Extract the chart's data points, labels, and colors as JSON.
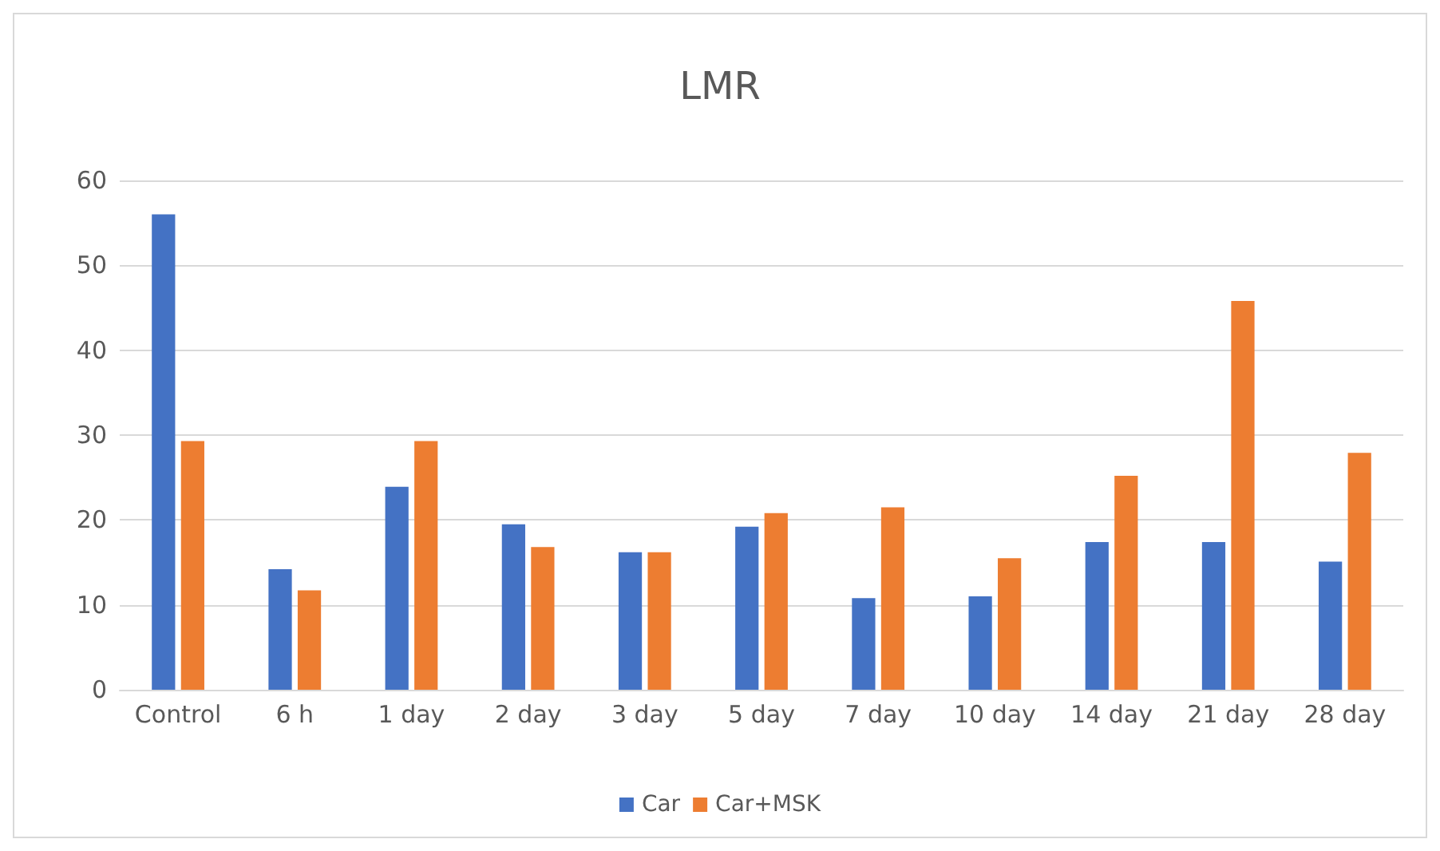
{
  "chart_data": {
    "type": "bar",
    "title": "LMR",
    "categories": [
      "Control",
      "6 h",
      "1 day",
      "2 day",
      "3 day",
      "5 day",
      "7 day",
      "10 day",
      "14 day",
      "21 day",
      "28 day"
    ],
    "series": [
      {
        "name": "Car",
        "color": "#4472c4",
        "values": [
          56,
          14.2,
          23.9,
          19.5,
          16.2,
          19.2,
          10.8,
          11,
          17.4,
          17.4,
          15.1
        ]
      },
      {
        "name": "Car+MSK",
        "color": "#ed7d31",
        "values": [
          29.3,
          11.7,
          29.3,
          16.8,
          16.2,
          20.8,
          21.5,
          15.5,
          25.2,
          45.8,
          27.9
        ]
      }
    ],
    "ylim": [
      0,
      60
    ],
    "yticks": [
      0,
      10,
      20,
      30,
      40,
      50,
      60
    ],
    "grid": "y",
    "legend": "bottom"
  }
}
